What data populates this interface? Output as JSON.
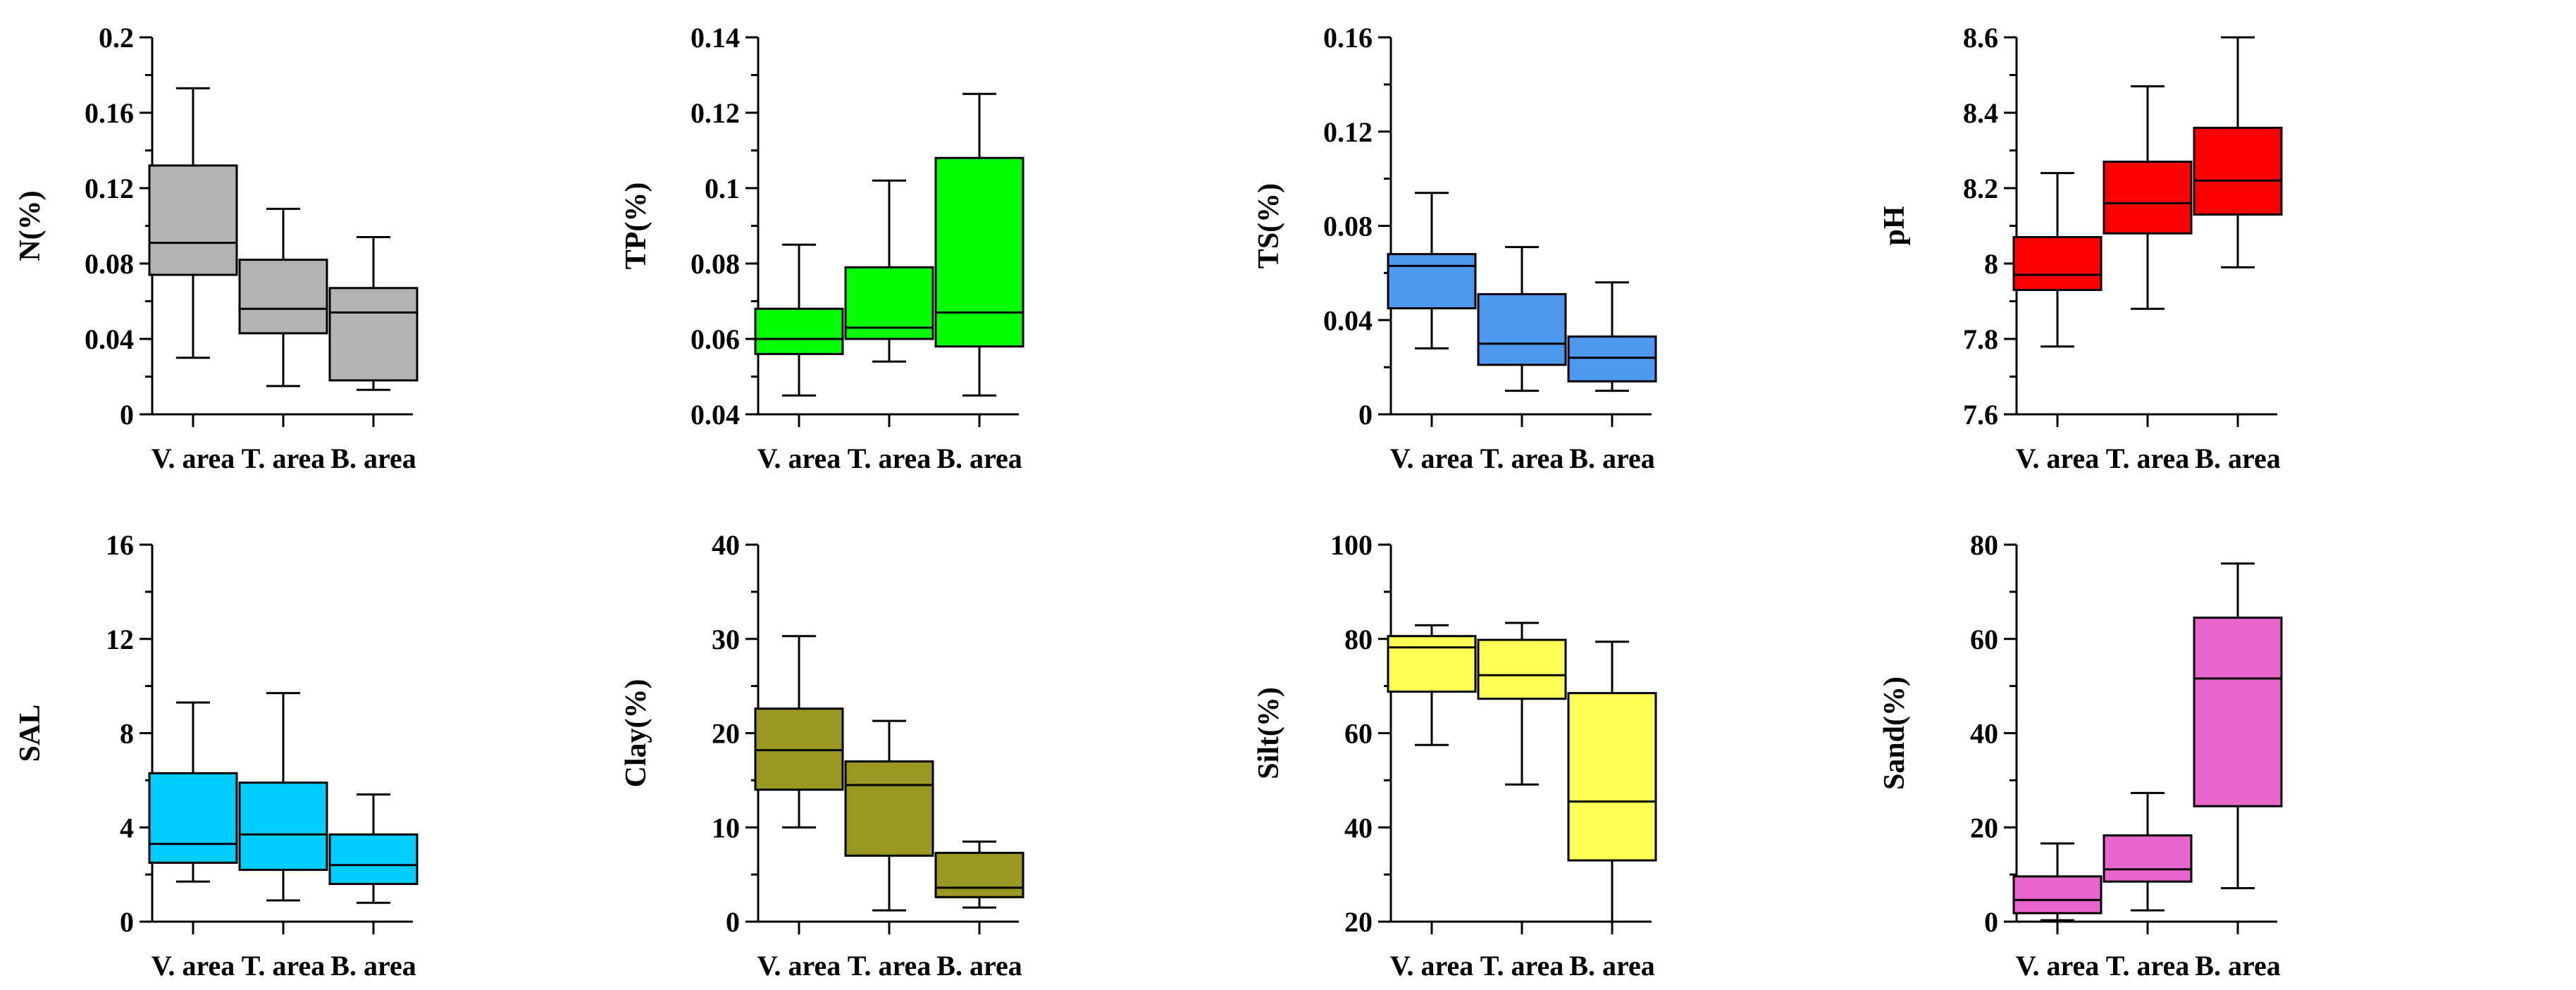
{
  "chart_data": [
    {
      "type": "boxplot",
      "ylabel": "N(%)",
      "categories": [
        "V. area",
        "T. area",
        "B. area"
      ],
      "ylim": [
        0,
        0.2
      ],
      "yticks": [
        0,
        0.04,
        0.08,
        0.12,
        0.16,
        0.2
      ],
      "ytick_labels": [
        "0",
        "0.04",
        "0.08",
        "0.12",
        "0.16",
        "0.2"
      ],
      "color": "#b3b3b3",
      "boxes": [
        {
          "min": 0.03,
          "q1": 0.074,
          "median": 0.091,
          "q3": 0.132,
          "max": 0.173
        },
        {
          "min": 0.015,
          "q1": 0.043,
          "median": 0.056,
          "q3": 0.082,
          "max": 0.109
        },
        {
          "min": 0.013,
          "q1": 0.018,
          "median": 0.054,
          "q3": 0.067,
          "max": 0.094
        }
      ]
    },
    {
      "type": "boxplot",
      "ylabel": "TP(%)",
      "categories": [
        "V. area",
        "T. area",
        "B. area"
      ],
      "ylim": [
        0.04,
        0.14
      ],
      "yticks": [
        0.04,
        0.06,
        0.08,
        0.1,
        0.12,
        0.14
      ],
      "ytick_labels": [
        "0.04",
        "0.06",
        "0.08",
        "0.1",
        "0.12",
        "0.14"
      ],
      "color": "#00ff00",
      "boxes": [
        {
          "min": 0.045,
          "q1": 0.056,
          "median": 0.06,
          "q3": 0.068,
          "max": 0.085
        },
        {
          "min": 0.054,
          "q1": 0.06,
          "median": 0.063,
          "q3": 0.079,
          "max": 0.102
        },
        {
          "min": 0.045,
          "q1": 0.058,
          "median": 0.067,
          "q3": 0.108,
          "max": 0.125
        }
      ]
    },
    {
      "type": "boxplot",
      "ylabel": "TS(%)",
      "categories": [
        "V. area",
        "T. area",
        "B. area"
      ],
      "ylim": [
        0,
        0.16
      ],
      "yticks": [
        0,
        0.04,
        0.08,
        0.12,
        0.16
      ],
      "ytick_labels": [
        "0",
        "0.04",
        "0.08",
        "0.12",
        "0.16"
      ],
      "color": "#4d99f0",
      "boxes": [
        {
          "min": 0.028,
          "q1": 0.045,
          "median": 0.063,
          "q3": 0.068,
          "max": 0.094
        },
        {
          "min": 0.01,
          "q1": 0.021,
          "median": 0.03,
          "q3": 0.051,
          "max": 0.071
        },
        {
          "min": 0.01,
          "q1": 0.014,
          "median": 0.024,
          "q3": 0.033,
          "max": 0.056
        }
      ]
    },
    {
      "type": "boxplot",
      "ylabel": "pH",
      "categories": [
        "V. area",
        "T. area",
        "B. area"
      ],
      "ylim": [
        7.6,
        8.6
      ],
      "yticks": [
        7.6,
        7.8,
        8,
        8.2,
        8.4,
        8.6
      ],
      "ytick_labels": [
        "7.6",
        "7.8",
        "8",
        "8.2",
        "8.4",
        "8.6"
      ],
      "color": "#ff0000",
      "boxes": [
        {
          "min": 7.78,
          "q1": 7.93,
          "median": 7.97,
          "q3": 8.07,
          "max": 8.24
        },
        {
          "min": 7.88,
          "q1": 8.08,
          "median": 8.16,
          "q3": 8.27,
          "max": 8.47
        },
        {
          "min": 7.99,
          "q1": 8.13,
          "median": 8.22,
          "q3": 8.36,
          "max": 8.6
        }
      ]
    },
    {
      "type": "boxplot",
      "ylabel": "SAL",
      "categories": [
        "V. area",
        "T. area",
        "B. area"
      ],
      "ylim": [
        0,
        16
      ],
      "yticks": [
        0,
        4,
        8,
        12,
        16
      ],
      "ytick_labels": [
        "0",
        "4",
        "8",
        "12",
        "16"
      ],
      "color": "#00ccff",
      "boxes": [
        {
          "min": 1.7,
          "q1": 2.5,
          "median": 3.3,
          "q3": 6.3,
          "max": 9.3
        },
        {
          "min": 0.9,
          "q1": 2.2,
          "median": 3.7,
          "q3": 5.9,
          "max": 9.7
        },
        {
          "min": 0.8,
          "q1": 1.6,
          "median": 2.4,
          "q3": 3.7,
          "max": 5.4
        }
      ]
    },
    {
      "type": "boxplot",
      "ylabel": "Clay(%)",
      "categories": [
        "V. area",
        "T. area",
        "B. area"
      ],
      "ylim": [
        0,
        40
      ],
      "yticks": [
        0,
        10,
        20,
        30,
        40
      ],
      "ytick_labels": [
        "0",
        "10",
        "20",
        "30",
        "40"
      ],
      "color": "#999922",
      "boxes": [
        {
          "min": 10.0,
          "q1": 14.0,
          "median": 18.2,
          "q3": 22.6,
          "max": 30.3
        },
        {
          "min": 1.2,
          "q1": 7.0,
          "median": 14.5,
          "q3": 17.0,
          "max": 21.3
        },
        {
          "min": 1.5,
          "q1": 2.6,
          "median": 3.6,
          "q3": 7.3,
          "max": 8.5
        }
      ]
    },
    {
      "type": "boxplot",
      "ylabel": "Silt(%)",
      "categories": [
        "V. area",
        "T. area",
        "B. area"
      ],
      "ylim": [
        20,
        100
      ],
      "yticks": [
        20,
        40,
        60,
        80,
        100
      ],
      "ytick_labels": [
        "20",
        "40",
        "60",
        "80",
        "100"
      ],
      "color": "#ffff55",
      "boxes": [
        {
          "min": 57.5,
          "q1": 68.8,
          "median": 78.2,
          "q3": 80.6,
          "max": 82.9
        },
        {
          "min": 49.1,
          "q1": 67.3,
          "median": 72.3,
          "q3": 79.8,
          "max": 83.4
        },
        {
          "min": 20.0,
          "q1": 33.0,
          "median": 45.5,
          "q3": 68.5,
          "max": 79.4
        }
      ]
    },
    {
      "type": "boxplot",
      "ylabel": "Sand(%)",
      "categories": [
        "V. area",
        "T. area",
        "B. area"
      ],
      "ylim": [
        0,
        80
      ],
      "yticks": [
        0,
        20,
        40,
        60,
        80
      ],
      "ytick_labels": [
        "0",
        "20",
        "40",
        "60",
        "80"
      ],
      "color": "#e866cc",
      "boxes": [
        {
          "min": 0.3,
          "q1": 1.8,
          "median": 4.6,
          "q3": 9.6,
          "max": 16.6
        },
        {
          "min": 2.4,
          "q1": 8.5,
          "median": 11.1,
          "q3": 18.3,
          "max": 27.3
        },
        {
          "min": 7.1,
          "q1": 24.5,
          "median": 51.6,
          "q3": 64.5,
          "max": 76.0
        }
      ]
    }
  ]
}
